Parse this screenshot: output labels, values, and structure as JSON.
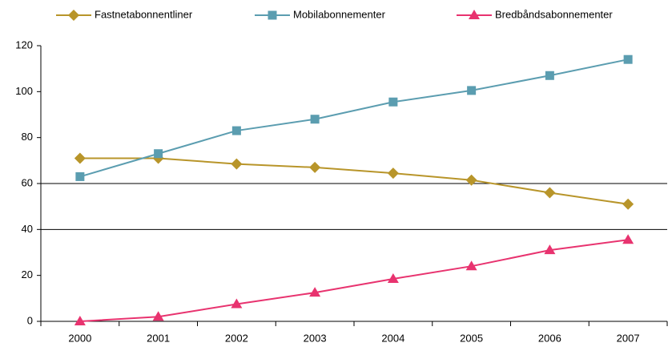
{
  "chart_data": {
    "type": "line",
    "categories": [
      "2000",
      "2001",
      "2002",
      "2003",
      "2004",
      "2005",
      "2006",
      "2007"
    ],
    "series": [
      {
        "name": "Fastnetabonnentliner",
        "color": "#b8952a",
        "marker": "diamond",
        "values": [
          71,
          71,
          68.5,
          67,
          64.5,
          61.5,
          56,
          51
        ]
      },
      {
        "name": "Mobilabonnementer",
        "color": "#5b9db0",
        "marker": "square",
        "values": [
          63,
          73,
          83,
          88,
          95.5,
          100.5,
          107,
          114
        ]
      },
      {
        "name": "Bredbåndsabonnementer",
        "color": "#e8336f",
        "marker": "triangle",
        "values": [
          0,
          2,
          7.5,
          12.5,
          18.5,
          24,
          31,
          35.5
        ]
      }
    ],
    "ylim": [
      0,
      120
    ],
    "yticks": [
      0,
      20,
      40,
      60,
      80,
      100,
      120
    ],
    "grid_lines": [
      40,
      60
    ],
    "legend": "top"
  }
}
